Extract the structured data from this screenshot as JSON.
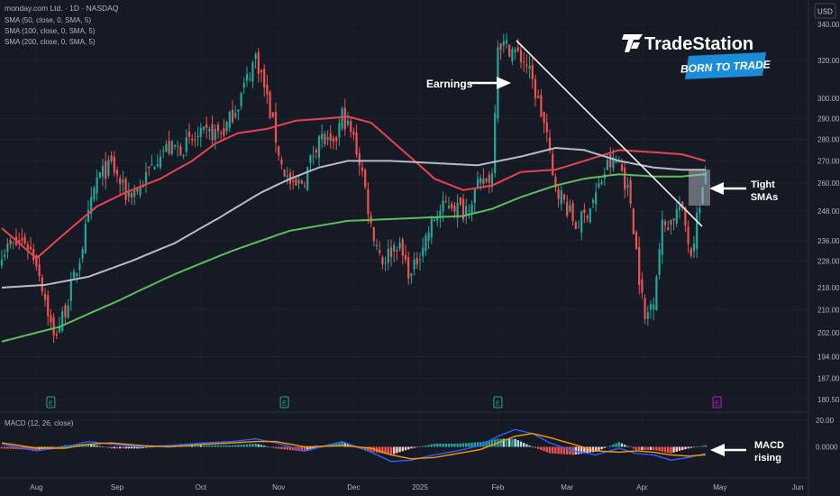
{
  "header": {
    "symbol_line": "monday.com Ltd. · 1D · NASDAQ",
    "indicators": [
      "SMA (50, close, 0, SMA, 5)",
      "SMA (100, close, 0, SMA, 5)",
      "SMA (200, close, 0, SMA, 5)"
    ],
    "currency": "USD"
  },
  "logo": {
    "brand": "TradeStation",
    "tagline": "BORN TO TRADE"
  },
  "annotations": {
    "earnings": "Earnings",
    "tight_smas": "Tight SMAs",
    "macd_rising": "MACD rising"
  },
  "macd_label": "MACD (12, 26, close)",
  "colors": {
    "background": "#161a25",
    "up_candle": "#26a69a",
    "down_candle": "#ef5350",
    "sma50": "#e8434f",
    "sma100": "#b9bcc4",
    "sma200": "#5cbf5a",
    "macd_line": "#2962ff",
    "signal_line": "#ff9800"
  },
  "chart_data": [
    {
      "type": "candlestick",
      "title": "monday.com Ltd. · 1D · NASDAQ",
      "x_labels": [
        "Aug",
        "Sep",
        "Oct",
        "Nov",
        "Dec",
        "2025",
        "Feb",
        "Mar",
        "Apr",
        "May",
        "Jun"
      ],
      "y_ticks": [
        340,
        320,
        300,
        290,
        280,
        270,
        260,
        248,
        236,
        228,
        218,
        210,
        202,
        194,
        187,
        180.5
      ],
      "y_tick_labels": [
        "340.00",
        "320.00",
        "300.00",
        "290.00",
        "280.00",
        "270.00",
        "260.00",
        "248.00",
        "236.00",
        "228.00",
        "218.00",
        "210.00",
        "202.00",
        "194.00",
        "187.00",
        "180.50"
      ],
      "y_scale": "log",
      "ylim": [
        178,
        350
      ],
      "price_anchors": [
        [
          0,
          232
        ],
        [
          8,
          236
        ],
        [
          12,
          228
        ],
        [
          18,
          200
        ],
        [
          22,
          210
        ],
        [
          27,
          229
        ],
        [
          33,
          262
        ],
        [
          38,
          268
        ],
        [
          43,
          255
        ],
        [
          48,
          258
        ],
        [
          55,
          275
        ],
        [
          62,
          276
        ],
        [
          70,
          282
        ],
        [
          77,
          284
        ],
        [
          82,
          298
        ],
        [
          85,
          310
        ],
        [
          88,
          322
        ],
        [
          90,
          312
        ],
        [
          97,
          268
        ],
        [
          101,
          257
        ],
        [
          105,
          262
        ],
        [
          110,
          282
        ],
        [
          115,
          275
        ],
        [
          118,
          292
        ],
        [
          122,
          280
        ],
        [
          125,
          265
        ],
        [
          128,
          242
        ],
        [
          132,
          228
        ],
        [
          137,
          235
        ],
        [
          142,
          222
        ],
        [
          145,
          232
        ],
        [
          150,
          245
        ],
        [
          155,
          252
        ],
        [
          160,
          248
        ],
        [
          165,
          258
        ],
        [
          170,
          264
        ],
        [
          172,
          330
        ],
        [
          177,
          326
        ],
        [
          182,
          318
        ],
        [
          186,
          298
        ],
        [
          189,
          282
        ],
        [
          191,
          262
        ],
        [
          195,
          252
        ],
        [
          199,
          242
        ],
        [
          202,
          246
        ],
        [
          206,
          255
        ],
        [
          210,
          268
        ],
        [
          214,
          270
        ],
        [
          218,
          252
        ],
        [
          221,
          222
        ],
        [
          223,
          206
        ],
        [
          226,
          215
        ],
        [
          229,
          242
        ],
        [
          232,
          244
        ],
        [
          235,
          250
        ],
        [
          237,
          242
        ],
        [
          239,
          231
        ],
        [
          242,
          252
        ],
        [
          244,
          262
        ]
      ],
      "earnings_markers": [
        {
          "bar": 17,
          "label": "E"
        },
        {
          "bar": 98,
          "label": "E"
        },
        {
          "bar": 172,
          "label": "E"
        },
        {
          "bar": 248,
          "label": "E"
        }
      ],
      "series": [
        {
          "name": "SMA (50, close, 0, SMA, 5)",
          "anchors": [
            [
              0,
              241
            ],
            [
              12,
              229
            ],
            [
              22,
              239
            ],
            [
              33,
              250
            ],
            [
              43,
              256
            ],
            [
              55,
              262
            ],
            [
              66,
              270
            ],
            [
              74,
              278
            ],
            [
              82,
              283
            ],
            [
              92,
              285
            ],
            [
              102,
              289
            ],
            [
              112,
              290
            ],
            [
              120,
              291
            ],
            [
              128,
              288
            ],
            [
              138,
              276
            ],
            [
              150,
              262
            ],
            [
              160,
              257
            ],
            [
              170,
              259
            ],
            [
              180,
              265
            ],
            [
              192,
              266
            ],
            [
              202,
              270
            ],
            [
              214,
              275
            ],
            [
              226,
              274
            ],
            [
              236,
              273
            ],
            [
              244,
              270
            ]
          ]
        },
        {
          "name": "SMA (100, close, 0, SMA, 5)",
          "anchors": [
            [
              0,
              218
            ],
            [
              15,
              219
            ],
            [
              30,
              222
            ],
            [
              45,
              228
            ],
            [
              60,
              235
            ],
            [
              75,
              245
            ],
            [
              90,
              256
            ],
            [
              100,
              262
            ],
            [
              110,
              267
            ],
            [
              120,
              270
            ],
            [
              135,
              270
            ],
            [
              150,
              269
            ],
            [
              165,
              268
            ],
            [
              180,
              272
            ],
            [
              192,
              276
            ],
            [
              202,
              275
            ],
            [
              214,
              270
            ],
            [
              226,
              267
            ],
            [
              236,
              266
            ],
            [
              244,
              266
            ]
          ]
        },
        {
          "name": "SMA (200, close, 0, SMA, 5)",
          "anchors": [
            [
              0,
              199
            ],
            [
              20,
              204
            ],
            [
              40,
              213
            ],
            [
              60,
              223
            ],
            [
              80,
              232
            ],
            [
              100,
              240
            ],
            [
              120,
              244
            ],
            [
              140,
              245
            ],
            [
              160,
              246
            ],
            [
              170,
              249
            ],
            [
              180,
              254
            ],
            [
              192,
              259
            ],
            [
              202,
              262
            ],
            [
              214,
              264
            ],
            [
              226,
              263
            ],
            [
              236,
              263
            ],
            [
              244,
              264
            ]
          ]
        }
      ]
    },
    {
      "type": "macd",
      "title": "MACD (12, 26, close)",
      "y_ticks": [
        20,
        0
      ],
      "y_tick_labels": [
        "20.00",
        "0.0000"
      ],
      "ylim": [
        -22,
        22
      ],
      "series": [
        {
          "name": "MACD",
          "anchors": [
            [
              0,
              2
            ],
            [
              12,
              -3
            ],
            [
              22,
              0
            ],
            [
              30,
              4
            ],
            [
              38,
              2
            ],
            [
              48,
              0
            ],
            [
              58,
              1
            ],
            [
              70,
              3
            ],
            [
              80,
              4
            ],
            [
              88,
              6
            ],
            [
              95,
              3
            ],
            [
              105,
              -3
            ],
            [
              118,
              4
            ],
            [
              128,
              -4
            ],
            [
              135,
              -11
            ],
            [
              142,
              -10
            ],
            [
              150,
              -6
            ],
            [
              158,
              -3
            ],
            [
              166,
              1
            ],
            [
              172,
              8
            ],
            [
              178,
              13
            ],
            [
              184,
              10
            ],
            [
              190,
              3
            ],
            [
              198,
              -3
            ],
            [
              206,
              -6
            ],
            [
              214,
              -1
            ],
            [
              220,
              -5
            ],
            [
              226,
              -6
            ],
            [
              232,
              -10
            ],
            [
              238,
              -8
            ],
            [
              244,
              -5
            ]
          ]
        },
        {
          "name": "Signal",
          "anchors": [
            [
              0,
              3
            ],
            [
              12,
              -1
            ],
            [
              22,
              -1
            ],
            [
              30,
              2
            ],
            [
              38,
              3
            ],
            [
              48,
              1
            ],
            [
              58,
              0
            ],
            [
              70,
              2
            ],
            [
              80,
              3
            ],
            [
              88,
              4
            ],
            [
              95,
              4
            ],
            [
              105,
              0
            ],
            [
              118,
              1
            ],
            [
              128,
              -1
            ],
            [
              135,
              -6
            ],
            [
              142,
              -9
            ],
            [
              150,
              -8
            ],
            [
              158,
              -5
            ],
            [
              166,
              -2
            ],
            [
              172,
              3
            ],
            [
              178,
              8
            ],
            [
              184,
              10
            ],
            [
              190,
              7
            ],
            [
              198,
              2
            ],
            [
              206,
              -3
            ],
            [
              214,
              -4
            ],
            [
              220,
              -3
            ],
            [
              226,
              -4
            ],
            [
              232,
              -6
            ],
            [
              238,
              -7
            ],
            [
              244,
              -6
            ]
          ]
        }
      ]
    }
  ]
}
